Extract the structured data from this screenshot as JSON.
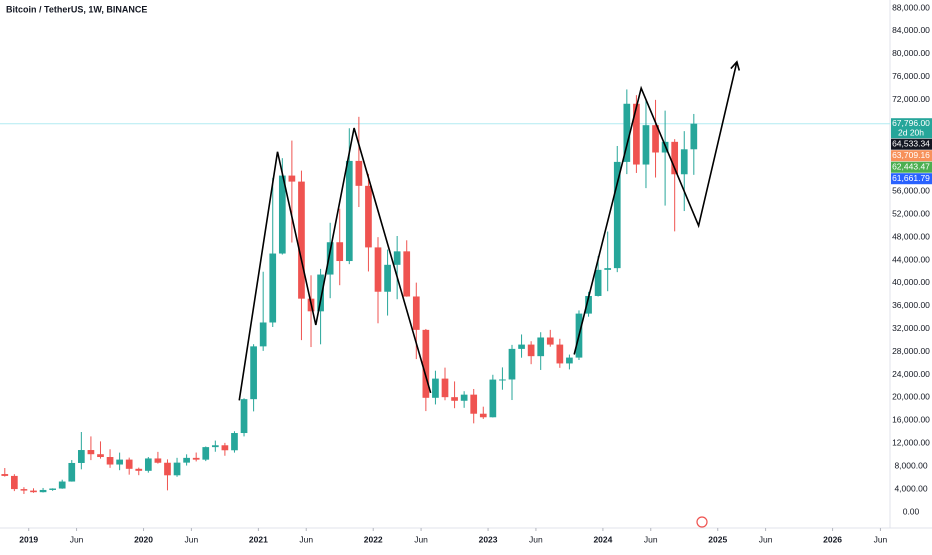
{
  "chart_data": {
    "type": "candlestick",
    "title": "Bitcoin / TetherUS, 1W, BINANCE",
    "x": [
      "2018-10",
      "2018-11",
      "2018-12",
      "2019-01",
      "2019-02",
      "2019-03",
      "2019-04",
      "2019-05",
      "2019-06",
      "2019-07",
      "2019-08",
      "2019-09",
      "2019-10",
      "2019-11",
      "2019-12",
      "2020-01",
      "2020-02",
      "2020-03",
      "2020-04",
      "2020-05",
      "2020-06",
      "2020-07",
      "2020-08",
      "2020-09",
      "2020-10",
      "2020-11",
      "2020-12",
      "2021-01",
      "2021-02",
      "2021-03",
      "2021-04",
      "2021-05",
      "2021-06",
      "2021-07",
      "2021-08",
      "2021-09",
      "2021-10",
      "2021-11",
      "2021-12",
      "2022-01",
      "2022-02",
      "2022-03",
      "2022-04",
      "2022-05",
      "2022-06",
      "2022-07",
      "2022-08",
      "2022-09",
      "2022-10",
      "2022-11",
      "2022-12",
      "2023-01",
      "2023-02",
      "2023-03",
      "2023-04",
      "2023-05",
      "2023-06",
      "2023-07",
      "2023-08",
      "2023-09",
      "2023-10",
      "2023-11",
      "2023-12",
      "2024-01",
      "2024-02",
      "2024-03",
      "2024-04",
      "2024-05",
      "2024-06",
      "2024-07",
      "2024-08",
      "2024-09",
      "2024-10"
    ],
    "open": [
      6626,
      6300,
      4000,
      3740,
      3460,
      3850,
      4100,
      5320,
      8560,
      10820,
      10090,
      9600,
      8290,
      9150,
      7540,
      7190,
      9350,
      8600,
      6410,
      8620,
      9450,
      9140,
      11330,
      11650,
      10780,
      13790,
      19700,
      28920,
      33090,
      45130,
      58740,
      57690,
      37250,
      35040,
      41460,
      47100,
      43820,
      61300,
      56950,
      46200,
      38460,
      43160,
      45510,
      37630,
      31800,
      19940,
      23290,
      20050,
      19420,
      20490,
      17160,
      16540,
      23120,
      23140,
      28480,
      29230,
      27210,
      30470,
      29230,
      25940,
      26960,
      34640,
      37720,
      42280,
      42580,
      61130,
      71280,
      60670,
      67540,
      62770,
      64630,
      58970,
      63330
    ],
    "high": [
      7680,
      6600,
      4330,
      4140,
      4200,
      4140,
      5640,
      9070,
      13970,
      13200,
      12330,
      10950,
      10370,
      9500,
      7750,
      9600,
      10500,
      9190,
      9460,
      10070,
      10380,
      11440,
      12470,
      12070,
      14100,
      19860,
      29300,
      41950,
      58350,
      61780,
      64850,
      59600,
      41330,
      42450,
      50500,
      52950,
      67000,
      69000,
      59050,
      47990,
      45820,
      48190,
      47440,
      40050,
      31960,
      24670,
      25200,
      22800,
      21090,
      21480,
      18390,
      23960,
      25250,
      29180,
      31000,
      29820,
      31390,
      31800,
      30240,
      27490,
      35200,
      38450,
      44700,
      48970,
      63910,
      73780,
      72780,
      71950,
      71960,
      70080,
      65100,
      66500,
      69500
    ],
    "low": [
      6180,
      3650,
      3150,
      3350,
      3400,
      3700,
      4050,
      5300,
      7450,
      9060,
      9320,
      7710,
      7300,
      6520,
      6430,
      6870,
      8450,
      3780,
      6150,
      8110,
      8830,
      8890,
      10520,
      9820,
      10370,
      13200,
      17570,
      28130,
      32300,
      44950,
      47050,
      30000,
      28800,
      29280,
      37330,
      39600,
      43280,
      53250,
      42000,
      32950,
      34300,
      37150,
      37580,
      26700,
      17620,
      18780,
      19520,
      18125,
      18190,
      15480,
      16250,
      16500,
      21350,
      19550,
      26940,
      25810,
      24800,
      28860,
      25170,
      24900,
      26540,
      34100,
      37620,
      38550,
      41880,
      59000,
      59200,
      56550,
      58400,
      53500,
      49000,
      52550,
      58870
    ],
    "close": [
      6300,
      4000,
      3740,
      3460,
      3850,
      4100,
      5320,
      8560,
      10820,
      10090,
      9600,
      8290,
      9150,
      7540,
      7190,
      9350,
      8600,
      6410,
      8620,
      9450,
      9140,
      11330,
      11650,
      10780,
      13790,
      19700,
      28920,
      33090,
      45130,
      58740,
      57690,
      37250,
      35040,
      41460,
      47100,
      43820,
      61300,
      56950,
      46200,
      38460,
      43160,
      45510,
      37630,
      31800,
      19940,
      23290,
      20050,
      19420,
      20490,
      17160,
      16540,
      23120,
      23140,
      28480,
      29230,
      27210,
      30470,
      29230,
      25940,
      26960,
      34640,
      37720,
      42280,
      42580,
      61130,
      71280,
      60670,
      67540,
      62770,
      64630,
      58970,
      63330,
      67796
    ],
    "up_color": "#26a69a",
    "down_color": "#ef5350",
    "xlim": [
      "2018-10",
      "2026-07"
    ],
    "xticks": [
      {
        "value": "2019-01",
        "label": "2019"
      },
      {
        "value": "2019-06",
        "label": "Jun"
      },
      {
        "value": "2020-01",
        "label": "2020"
      },
      {
        "value": "2020-06",
        "label": "Jun"
      },
      {
        "value": "2021-01",
        "label": "2021"
      },
      {
        "value": "2021-06",
        "label": "Jun"
      },
      {
        "value": "2022-01",
        "label": "2022"
      },
      {
        "value": "2022-06",
        "label": "Jun"
      },
      {
        "value": "2023-01",
        "label": "2023"
      },
      {
        "value": "2023-06",
        "label": "Jun"
      },
      {
        "value": "2024-01",
        "label": "2024"
      },
      {
        "value": "2024-06",
        "label": "Jun"
      },
      {
        "value": "2025-01",
        "label": "2025"
      },
      {
        "value": "2025-06",
        "label": "Jun"
      },
      {
        "value": "2026-01",
        "label": "2026"
      },
      {
        "value": "2026-06",
        "label": "Jun"
      }
    ],
    "ylim": [
      0,
      88000
    ],
    "yticks": [
      {
        "value": 0,
        "label": "0.00"
      },
      {
        "value": 4000,
        "label": "4,000.00"
      },
      {
        "value": 8000,
        "label": "8,000.00"
      },
      {
        "value": 12000,
        "label": "12,000.00"
      },
      {
        "value": 16000,
        "label": "16,000.00"
      },
      {
        "value": 20000,
        "label": "20,000.00"
      },
      {
        "value": 24000,
        "label": "24,000.00"
      },
      {
        "value": 28000,
        "label": "28,000.00"
      },
      {
        "value": 32000,
        "label": "32,000.00"
      },
      {
        "value": 36000,
        "label": "36,000.00"
      },
      {
        "value": 40000,
        "label": "40,000.00"
      },
      {
        "value": 44000,
        "label": "44,000.00"
      },
      {
        "value": 48000,
        "label": "48,000.00"
      },
      {
        "value": 52000,
        "label": "52,000.00"
      },
      {
        "value": 56000,
        "label": "56,000.00"
      },
      {
        "value": 60000,
        "label": "60,000.00"
      },
      {
        "value": 64000,
        "label": "64,000.00"
      },
      {
        "value": 68000,
        "label": "68,000.00"
      },
      {
        "value": 72000,
        "label": "72,000.00"
      },
      {
        "value": 76000,
        "label": "76,000.00"
      },
      {
        "value": 80000,
        "label": "80,000.00"
      },
      {
        "value": 84000,
        "label": "84,000.00"
      },
      {
        "value": 88000,
        "label": "88,000.00"
      }
    ],
    "grid": false,
    "price_tags": [
      {
        "value": 67796,
        "label": "67,796.00",
        "color": "#26a69a"
      },
      {
        "value": 64533.34,
        "label": "64,533.34",
        "color": "#131722"
      },
      {
        "value": 63709.16,
        "label": "63,709.16",
        "color": "#f7915a"
      },
      {
        "value": 62443.47,
        "label": "62,443.47",
        "color": "#4caf50"
      },
      {
        "value": 61661.79,
        "label": "61,661.79",
        "color": "#2962ff"
      }
    ],
    "countdown": "2d 20h",
    "drawings": [
      {
        "x": [
          "2020-11",
          "2021-03",
          "2021-07",
          "2021-11",
          "2022-07"
        ],
        "y": [
          19500,
          62900,
          32650,
          67050,
          20800
        ]
      },
      {
        "x": [
          "2023-10",
          "2024-05",
          "2024-11",
          "2025-03"
        ],
        "y": [
          27500,
          74000,
          50000,
          78600
        ]
      }
    ]
  }
}
